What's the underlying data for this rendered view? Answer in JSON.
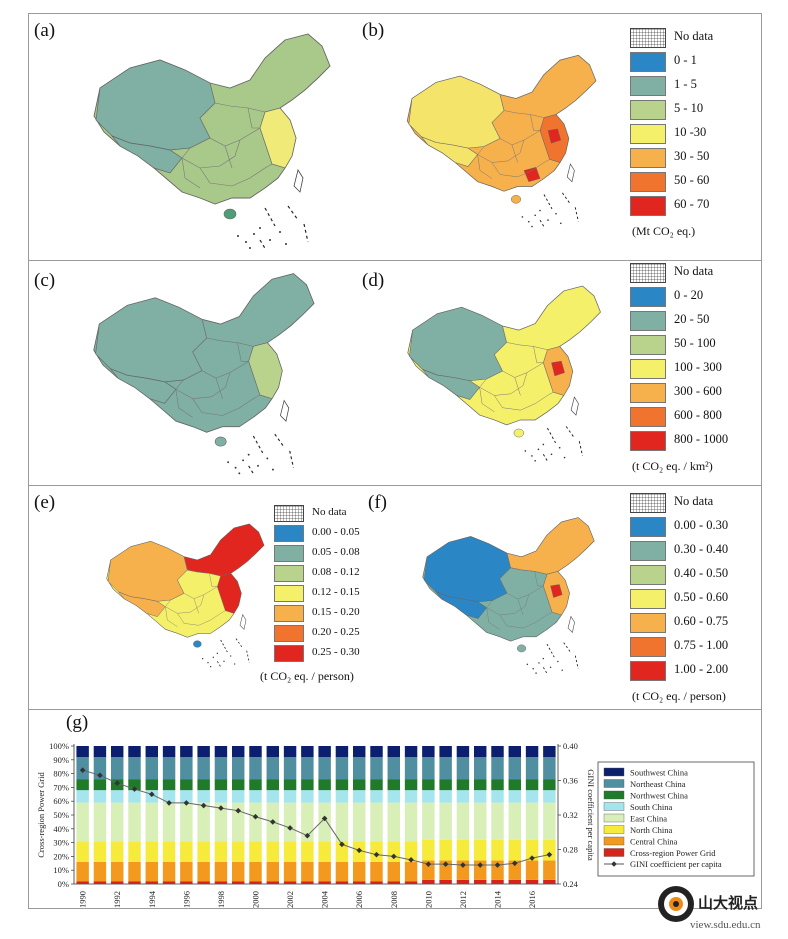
{
  "panels": [
    {
      "id": "a",
      "label": "(a)"
    },
    {
      "id": "b",
      "label": "(b)"
    },
    {
      "id": "c",
      "label": "(c)"
    },
    {
      "id": "d",
      "label": "(d)"
    },
    {
      "id": "e",
      "label": "(e)"
    },
    {
      "id": "f",
      "label": "(f)"
    },
    {
      "id": "g",
      "label": "(g)"
    }
  ],
  "legend_b": {
    "items": [
      "No data",
      "0  -  1",
      "1  -  5",
      "5  -  10",
      "10  -30",
      "30  -  50",
      "50  -  60",
      "60  -  70"
    ],
    "colors": [
      "nodata",
      "#2b86c5",
      "#7fb0a3",
      "#b9d28c",
      "#f5f06a",
      "#f6b04c",
      "#f0742e",
      "#e0261e"
    ],
    "unit": "(Mt CO₂ eq.)"
  },
  "legend_d": {
    "items": [
      "No data",
      "0  -  20",
      "20  -  50",
      "50  -  100",
      "100  -  300",
      "300  -  600",
      "600  -  800",
      "800  -  1000"
    ],
    "colors": [
      "nodata",
      "#2b86c5",
      "#7fb0a3",
      "#b9d28c",
      "#f5f06a",
      "#f6b04c",
      "#f0742e",
      "#e0261e"
    ],
    "unit": "(t CO₂ eq. / km²)"
  },
  "legend_e": {
    "items": [
      "No data",
      "0.00 - 0.05",
      "0.05 - 0.08",
      "0.08 - 0.12",
      "0.12 - 0.15",
      "0.15 - 0.20",
      "0.20 - 0.25",
      "0.25 - 0.30"
    ],
    "colors": [
      "nodata",
      "#2b86c5",
      "#7fb0a3",
      "#b9d28c",
      "#f5f06a",
      "#f6b04c",
      "#f0742e",
      "#e0261e"
    ],
    "unit": "(t CO₂ eq. / person)"
  },
  "legend_f": {
    "items": [
      "No data",
      "0.00 - 0.30",
      "0.30 - 0.40",
      "0.40 - 0.50",
      "0.50 - 0.60",
      "0.60 - 0.75",
      "0.75 - 1.00",
      "1.00 - 2.00"
    ],
    "colors": [
      "nodata",
      "#2b86c5",
      "#7fb0a3",
      "#b9d28c",
      "#f5f06a",
      "#f6b04c",
      "#f0742e",
      "#e0261e"
    ],
    "unit": "(t CO₂ eq. / person)"
  },
  "map_colors": {
    "a": {
      "fill": "#a9c98b",
      "west": "#7fb0a3",
      "east": "#f0ea78",
      "island": "#4f9d76"
    },
    "b": {
      "fill": "#f6b04c",
      "west": "#f5e46a",
      "east": "#f0742e",
      "hot": "#e0261e"
    },
    "c": {
      "fill": "#7fb0a3",
      "west": "#7fb0a3",
      "east": "#b9d28c",
      "island": "#7fb0a3"
    },
    "d": {
      "fill": "#f5f06a",
      "west": "#7fb0a3",
      "east": "#f6b04c",
      "hot": "#e0261e"
    },
    "e": {
      "fill": "#f5f06a",
      "west": "#f6b04c",
      "east": "#e0261e",
      "island": "#2b86c5"
    },
    "f": {
      "fill": "#7fb0a3",
      "west": "#2b86c5",
      "east": "#f6b04c",
      "hot": "#e0261e"
    }
  },
  "chart_data": {
    "type": "bar",
    "stacked": true,
    "categories": [
      "1990",
      "1991",
      "1992",
      "1993",
      "1994",
      "1995",
      "1996",
      "1997",
      "1998",
      "1999",
      "2000",
      "2001",
      "2002",
      "2003",
      "2004",
      "2005",
      "2006",
      "2007",
      "2008",
      "2009",
      "2010",
      "2011",
      "2012",
      "2013",
      "2014",
      "2015",
      "2016",
      "2017"
    ],
    "tick_labels": [
      "1990",
      "1992",
      "1994",
      "1996",
      "1998",
      "2000",
      "2002",
      "2004",
      "2006",
      "2008",
      "2010",
      "2012",
      "2014",
      "2016"
    ],
    "ylabel": "Cross-region Power Grid",
    "ylabel_right": "GINI coefficient per capita",
    "ylim": [
      0,
      100
    ],
    "y_ticks": [
      "0%",
      "10%",
      "20%",
      "30%",
      "40%",
      "50%",
      "60%",
      "70%",
      "80%",
      "90%",
      "100%"
    ],
    "ylim_right": [
      0.24,
      0.4
    ],
    "y2_ticks": [
      "0.24",
      "0.28",
      "0.32",
      "0.36",
      "0.40"
    ],
    "legend_position": "right",
    "series": [
      {
        "name": "Cross-region Power Grid",
        "color": "#d6241a",
        "values": [
          2,
          2,
          2,
          2,
          2,
          2,
          2,
          2,
          2,
          2,
          2,
          2,
          2,
          2,
          2,
          2,
          2,
          2,
          2,
          2,
          3,
          3,
          3,
          3,
          3,
          3,
          3,
          3
        ]
      },
      {
        "name": "Central China",
        "color": "#f39a1e",
        "values": [
          14,
          14,
          14,
          14,
          14,
          14,
          14,
          14,
          14,
          14,
          14,
          14,
          14,
          14,
          14,
          14,
          14,
          14,
          14,
          14,
          14,
          14,
          14,
          14,
          14,
          14,
          14,
          14
        ]
      },
      {
        "name": "North China",
        "color": "#f6ea3a",
        "values": [
          15,
          15,
          15,
          15,
          15,
          15,
          15,
          15,
          15,
          15,
          15,
          15,
          15,
          15,
          15,
          15,
          15,
          15,
          15,
          15,
          15,
          15,
          15,
          15,
          15,
          15,
          15,
          15
        ]
      },
      {
        "name": "East China",
        "color": "#d8efb8",
        "values": [
          28,
          28,
          28,
          28,
          28,
          28,
          28,
          28,
          28,
          28,
          28,
          28,
          28,
          28,
          28,
          28,
          28,
          28,
          28,
          28,
          27,
          27,
          27,
          27,
          27,
          27,
          27,
          27
        ]
      },
      {
        "name": "South China",
        "color": "#a5e6ee",
        "values": [
          9,
          9,
          9,
          9,
          9,
          9,
          9,
          9,
          9,
          9,
          9,
          9,
          9,
          9,
          9,
          9,
          9,
          9,
          9,
          9,
          9,
          9,
          9,
          9,
          9,
          9,
          9,
          9
        ]
      },
      {
        "name": "Northwest China",
        "color": "#1f7a2a",
        "values": [
          8,
          8,
          8,
          8,
          8,
          8,
          8,
          8,
          8,
          8,
          8,
          8,
          8,
          8,
          8,
          8,
          8,
          8,
          8,
          8,
          8,
          8,
          8,
          8,
          8,
          8,
          8,
          8
        ]
      },
      {
        "name": "Northeast China",
        "color": "#4f8fa0",
        "values": [
          16,
          16,
          16,
          16,
          16,
          16,
          16,
          16,
          16,
          16,
          16,
          16,
          16,
          16,
          16,
          16,
          16,
          16,
          16,
          16,
          16,
          16,
          16,
          16,
          16,
          16,
          16,
          16
        ]
      },
      {
        "name": "Southwest China",
        "color": "#0b1f6e",
        "values": [
          8,
          8,
          8,
          8,
          8,
          8,
          8,
          8,
          8,
          8,
          8,
          8,
          8,
          8,
          8,
          8,
          8,
          8,
          8,
          8,
          8,
          8,
          8,
          8,
          8,
          8,
          8,
          8
        ]
      }
    ],
    "gini": {
      "name": "GINI coefficient per capita",
      "values": [
        0.372,
        0.366,
        0.357,
        0.35,
        0.344,
        0.334,
        0.334,
        0.331,
        0.328,
        0.325,
        0.318,
        0.312,
        0.305,
        0.296,
        0.316,
        0.286,
        0.279,
        0.274,
        0.272,
        0.268,
        0.263,
        0.263,
        0.262,
        0.262,
        0.262,
        0.264,
        0.27,
        0.274
      ]
    }
  },
  "watermark": {
    "text": "山大视点",
    "url": "view.sdu.edu.cn"
  }
}
